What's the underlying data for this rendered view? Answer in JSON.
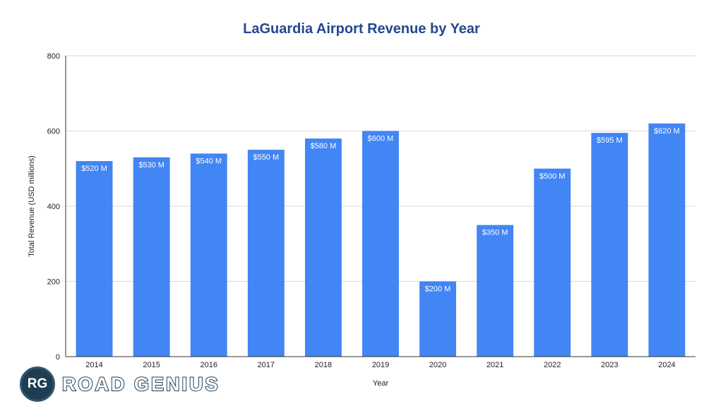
{
  "brand": {
    "badge_text": "RG",
    "name": "ROAD GENIUS",
    "color": "#1f3d52"
  },
  "chart_data": {
    "type": "bar",
    "title": "LaGuardia Airport Revenue by Year",
    "xlabel": "Year",
    "ylabel": "Total Revenue (USD millions)",
    "categories": [
      "2014",
      "2015",
      "2016",
      "2017",
      "2018",
      "2019",
      "2020",
      "2021",
      "2022",
      "2023",
      "2024"
    ],
    "values": [
      520,
      530,
      540,
      550,
      580,
      600,
      200,
      350,
      500,
      595,
      620
    ],
    "data_labels": [
      "$520 M",
      "$530 M",
      "$540 M",
      "$550 M",
      "$580 M",
      "$600 M",
      "$200 M",
      "$350 M",
      "$500 M",
      "$595 M",
      "$620 M"
    ],
    "ylim": [
      0,
      800
    ],
    "yticks": [
      0,
      200,
      400,
      600,
      800
    ],
    "grid": true,
    "legend": "none",
    "bar_color": "#4285f4",
    "title_color": "#24478f"
  }
}
